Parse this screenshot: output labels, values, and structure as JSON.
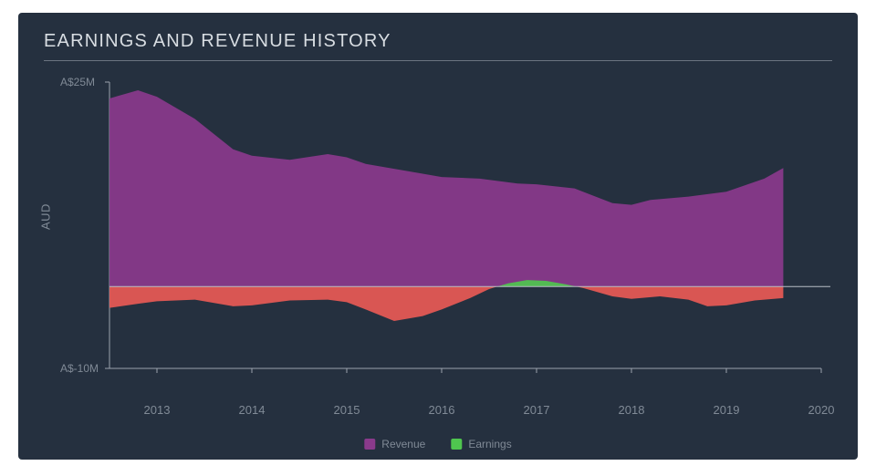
{
  "card": {
    "background_color": "#25303f",
    "title": "EARNINGS AND REVENUE HISTORY",
    "title_color": "#d8dde2",
    "title_fontsize": 20,
    "rule_color": "#6b7480"
  },
  "chart": {
    "type": "area",
    "background_color": "#25303f",
    "axis_color": "#9aa2ad",
    "grid_color": "#3a4453",
    "ylabel": "AUD",
    "label_color": "#808a96",
    "label_fontsize": 13,
    "tick_fontsize": 12,
    "x": {
      "min": 2012.5,
      "max": 2020,
      "ticks": [
        2013,
        2014,
        2015,
        2016,
        2017,
        2018,
        2019,
        2020
      ]
    },
    "y": {
      "min": -10,
      "max": 25,
      "zero": 0,
      "ticks": [
        {
          "value": 25,
          "label": "A$25M"
        },
        {
          "value": -10,
          "label": "A$-10M"
        }
      ]
    },
    "series": [
      {
        "name": "Revenue",
        "legend_label": "Revenue",
        "color": "#8a3a8c",
        "stroke": "#8a3a8c",
        "points": [
          {
            "x": 2012.5,
            "y": 23.0
          },
          {
            "x": 2012.8,
            "y": 24.0
          },
          {
            "x": 2013.0,
            "y": 23.2
          },
          {
            "x": 2013.4,
            "y": 20.5
          },
          {
            "x": 2013.8,
            "y": 16.8
          },
          {
            "x": 2014.0,
            "y": 16.0
          },
          {
            "x": 2014.4,
            "y": 15.5
          },
          {
            "x": 2014.8,
            "y": 16.2
          },
          {
            "x": 2015.0,
            "y": 15.8
          },
          {
            "x": 2015.2,
            "y": 15.0
          },
          {
            "x": 2015.8,
            "y": 13.8
          },
          {
            "x": 2016.0,
            "y": 13.4
          },
          {
            "x": 2016.4,
            "y": 13.2
          },
          {
            "x": 2016.8,
            "y": 12.6
          },
          {
            "x": 2017.0,
            "y": 12.5
          },
          {
            "x": 2017.4,
            "y": 12.0
          },
          {
            "x": 2017.8,
            "y": 10.2
          },
          {
            "x": 2018.0,
            "y": 10.0
          },
          {
            "x": 2018.2,
            "y": 10.6
          },
          {
            "x": 2018.6,
            "y": 11.0
          },
          {
            "x": 2019.0,
            "y": 11.6
          },
          {
            "x": 2019.4,
            "y": 13.2
          },
          {
            "x": 2019.6,
            "y": 14.5
          }
        ]
      },
      {
        "name": "Earnings",
        "legend_label": "Earnings",
        "color_positive": "#4fc64f",
        "color_negative": "#e85a55",
        "points": [
          {
            "x": 2012.5,
            "y": -2.6
          },
          {
            "x": 2012.8,
            "y": -2.1
          },
          {
            "x": 2013.0,
            "y": -1.8
          },
          {
            "x": 2013.4,
            "y": -1.6
          },
          {
            "x": 2013.8,
            "y": -2.4
          },
          {
            "x": 2014.0,
            "y": -2.3
          },
          {
            "x": 2014.4,
            "y": -1.7
          },
          {
            "x": 2014.8,
            "y": -1.6
          },
          {
            "x": 2015.0,
            "y": -1.9
          },
          {
            "x": 2015.2,
            "y": -2.8
          },
          {
            "x": 2015.5,
            "y": -4.2
          },
          {
            "x": 2015.8,
            "y": -3.6
          },
          {
            "x": 2016.0,
            "y": -2.8
          },
          {
            "x": 2016.3,
            "y": -1.4
          },
          {
            "x": 2016.5,
            "y": -0.3
          },
          {
            "x": 2016.7,
            "y": 0.4
          },
          {
            "x": 2016.9,
            "y": 0.8
          },
          {
            "x": 2017.1,
            "y": 0.7
          },
          {
            "x": 2017.3,
            "y": 0.3
          },
          {
            "x": 2017.5,
            "y": -0.2
          },
          {
            "x": 2017.8,
            "y": -1.2
          },
          {
            "x": 2018.0,
            "y": -1.5
          },
          {
            "x": 2018.3,
            "y": -1.2
          },
          {
            "x": 2018.6,
            "y": -1.6
          },
          {
            "x": 2018.8,
            "y": -2.4
          },
          {
            "x": 2019.0,
            "y": -2.3
          },
          {
            "x": 2019.3,
            "y": -1.7
          },
          {
            "x": 2019.6,
            "y": -1.4
          }
        ]
      }
    ],
    "legend": {
      "items": [
        {
          "label": "Revenue",
          "color": "#8a3a8c"
        },
        {
          "label": "Earnings",
          "color": "#4fc64f"
        }
      ]
    }
  }
}
